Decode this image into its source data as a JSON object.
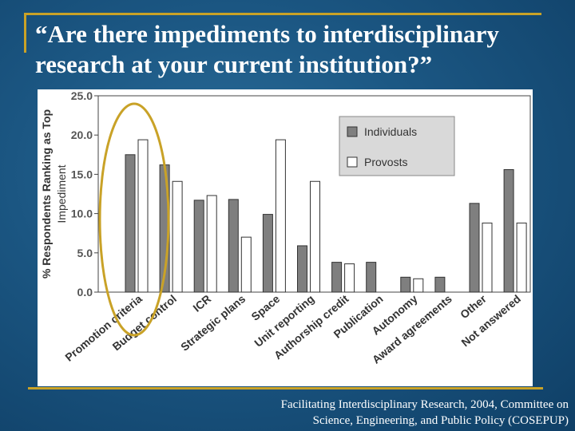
{
  "slide": {
    "title": "“Are there impediments to interdisciplinary research at your current institution?”",
    "source_line1": "Facilitating Interdisciplinary Research, 2004, Committee on",
    "source_line2": "Science, Engineering, and Public Policy (COSEPUP)"
  },
  "colors": {
    "individuals": "#7f7f7f",
    "provosts": "#ffffff",
    "highlight": "#c9a227",
    "frame": "#c9a227"
  },
  "chart_data": {
    "type": "bar",
    "title": "",
    "xlabel": "",
    "ylabel_line1": "% Respondents Ranking as Top",
    "ylabel_line2": "Impediment",
    "ylim": [
      0,
      25
    ],
    "yticks": [
      "0.0",
      "5.0",
      "10.0",
      "15.0",
      "20.0",
      "25.0"
    ],
    "categories": [
      "Promotion criteria",
      "Budget control",
      "ICR",
      "Strategic plans",
      "Space",
      "Unit reporting",
      "Authorship credit",
      "Publication",
      "Autonomy",
      "Award agreements",
      "Other",
      "Not answered"
    ],
    "series": [
      {
        "name": "Individuals",
        "values": [
          17.5,
          16.2,
          11.7,
          11.8,
          9.9,
          5.9,
          3.8,
          3.8,
          1.9,
          1.9,
          11.3,
          15.6
        ]
      },
      {
        "name": "Provosts",
        "values": [
          19.4,
          14.1,
          12.3,
          7.0,
          19.4,
          14.1,
          3.6,
          null,
          1.7,
          null,
          8.8,
          8.8
        ]
      }
    ],
    "legend_position": "top-right",
    "annotation": "ellipse around Promotion criteria and Budget control"
  }
}
